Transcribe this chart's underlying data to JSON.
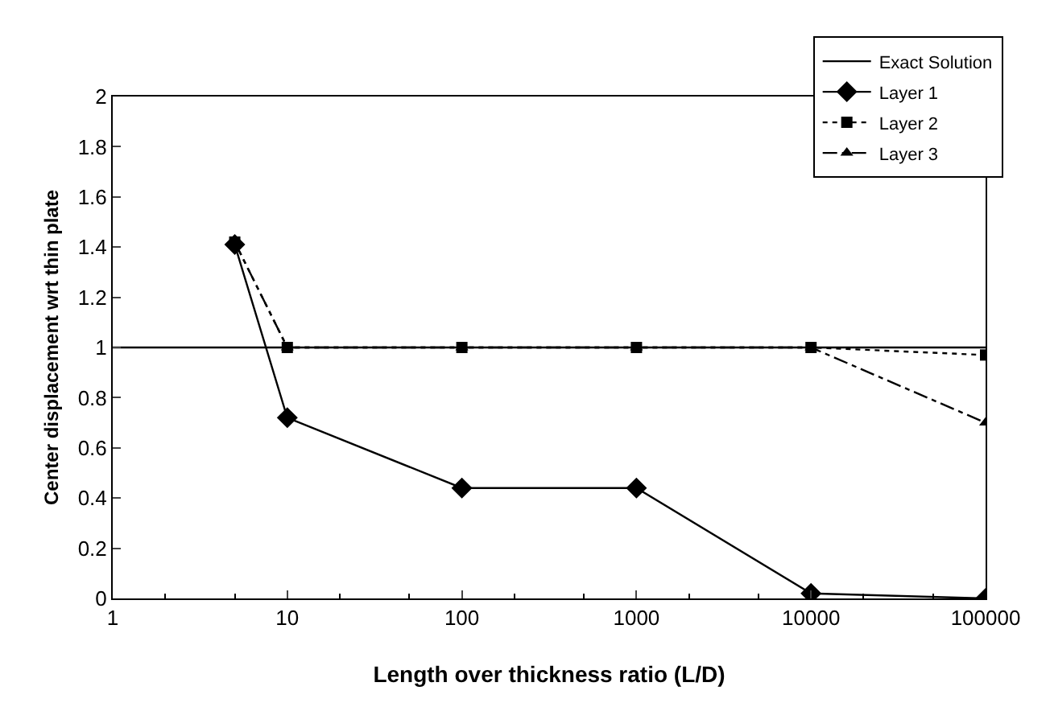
{
  "chart_data": {
    "type": "line",
    "xlabel": "Length over thickness ratio (L/D)",
    "ylabel": "Center displacement wrt thin plate",
    "log": "x",
    "grid": false,
    "legend": "top right",
    "xlim": [
      1,
      100000
    ],
    "xticks": [
      1,
      10,
      100,
      1000,
      10000,
      100000
    ],
    "ylim": [
      0,
      2
    ],
    "yticks": [
      0,
      0.2,
      0.4,
      0.6,
      0.8,
      1,
      1.2,
      1.4,
      1.6,
      1.8,
      2
    ],
    "series": [
      {
        "name": "Exact Solution",
        "color": "#000000",
        "x": [
          1,
          100000
        ],
        "values": [
          1,
          1
        ],
        "marker": "none",
        "line_style": "solid"
      },
      {
        "name": "Layer 1",
        "color": "#000000",
        "x": [
          5,
          10,
          100,
          1000,
          10000,
          100000
        ],
        "values": [
          1.41,
          0.72,
          0.44,
          0.44,
          0.02,
          0
        ],
        "marker": "diamond",
        "line_style": "solid"
      },
      {
        "name": "Layer 2",
        "color": "#000000",
        "x": [
          5,
          10,
          100,
          1000,
          10000,
          100000
        ],
        "values": [
          1.42,
          1.0,
          1.0,
          1.0,
          1.0,
          0.97
        ],
        "marker": "square",
        "line_style": "dotted"
      },
      {
        "name": "Layer 3",
        "color": "#000000",
        "x": [
          5,
          10,
          100,
          1000,
          10000,
          100000
        ],
        "values": [
          1.42,
          1.0,
          1.0,
          1.0,
          1.0,
          0.7
        ],
        "marker": "triangle",
        "line_style": "dashed"
      }
    ]
  }
}
